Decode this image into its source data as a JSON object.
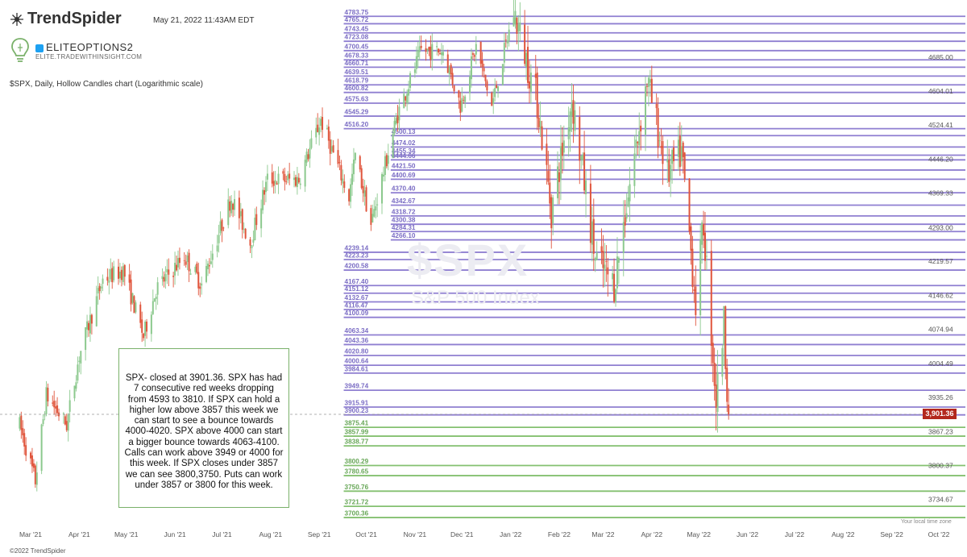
{
  "header": {
    "brand": "TrendSpider",
    "timestamp": "May 21, 2022 11:43AM EDT",
    "account_name": "ELITEOPTIONS2",
    "account_site": "ELITE.TRADEWITHINSIGHT.COM",
    "chart_subtitle": "$SPX, Daily, Hollow Candles chart (Logarithmic scale)"
  },
  "watermark": {
    "symbol": "$SPX",
    "name": "S&P 500 Index"
  },
  "note": "SPX- closed at 3901.36. SPX has had 7 consecutive red weeks dropping from 4593 to 3810. If SPX can hold a higher low above 3857 this week we can start to see a bounce towards 4000-4020. SPX above 4000 can start a bigger bounce towards 4063-4100. Calls can work above 3949 or 4000 for this week. If SPX closes under 3857 we can see 3800,3750. Puts can work under 3857 or 3800 for this week.",
  "last_price": "3,901.36",
  "timezone_note": "Your local time zone",
  "copyright": "©2022 TrendSpider",
  "colors": {
    "resistance": "#8f7fd1",
    "support": "#84c070",
    "up": "#8cc98e",
    "down": "#e0553c",
    "badge": "#b3281d"
  },
  "chart_data": {
    "type": "candlestick",
    "scale": "log",
    "ylim": [
      3670,
      4820
    ],
    "x_ticks": [
      "Mar '21",
      "Apr '21",
      "May '21",
      "Jun '21",
      "Jul '21",
      "Aug '21",
      "Sep '21",
      "Oct '21",
      "Nov '21",
      "Dec '21",
      "Jan '22",
      "Feb '22",
      "Mar '22",
      "Apr '22",
      "May '22",
      "Jun '22",
      "Jul '22",
      "Aug '22",
      "Sep '22",
      "Oct '22"
    ],
    "y_ticks": [
      "4685.00",
      "4604.01",
      "4524.41",
      "4446.20",
      "4369.33",
      "4293.00",
      "4219.57",
      "4146.62",
      "4074.94",
      "4004.49",
      "3935.26",
      "3867.23",
      "3800.37",
      "3734.67"
    ],
    "resistance_levels": [
      {
        "value": 4783.75,
        "label": "4783.75",
        "start": "Oct '21"
      },
      {
        "value": 4765.72,
        "label": "4765.72",
        "start": "Oct '21"
      },
      {
        "value": 4743.45,
        "label": "4743.45",
        "start": "Oct '21"
      },
      {
        "value": 4723.08,
        "label": "4723.08",
        "start": "Oct '21"
      },
      {
        "value": 4700.45,
        "label": "4700.45",
        "start": "Oct '21"
      },
      {
        "value": 4678.33,
        "label": "4678.33",
        "start": "Oct '21"
      },
      {
        "value": 4660.71,
        "label": "4660.71",
        "start": "Oct '21"
      },
      {
        "value": 4639.51,
        "label": "4639.51",
        "start": "Oct '21"
      },
      {
        "value": 4618.79,
        "label": "4618.79",
        "start": "Oct '21"
      },
      {
        "value": 4600.82,
        "label": "4600.82",
        "start": "Oct '21"
      },
      {
        "value": 4575.63,
        "label": "4575.63",
        "start": "Oct '21"
      },
      {
        "value": 4545.29,
        "label": "4545.29",
        "start": "Oct '21"
      },
      {
        "value": 4516.2,
        "label": "4516.20",
        "start": "Oct '21"
      },
      {
        "value": 4500.13,
        "label": "4500.13",
        "start": "Nov '21"
      },
      {
        "value": 4474.02,
        "label": "4474.02",
        "start": "Nov '21"
      },
      {
        "value": 4455.34,
        "label": "4455.34",
        "start": "Nov '21"
      },
      {
        "value": 4444.66,
        "label": "4444.66",
        "start": "Nov '21"
      },
      {
        "value": 4421.5,
        "label": "4421.50",
        "start": "Nov '21"
      },
      {
        "value": 4400.69,
        "label": "4400.69",
        "start": "Nov '21"
      },
      {
        "value": 4370.4,
        "label": "4370.40",
        "start": "Nov '21"
      },
      {
        "value": 4342.67,
        "label": "4342.67",
        "start": "Nov '21"
      },
      {
        "value": 4318.72,
        "label": "4318.72",
        "start": "Nov '21"
      },
      {
        "value": 4300.38,
        "label": "4300.38",
        "start": "Nov '21"
      },
      {
        "value": 4284.31,
        "label": "4284.31",
        "start": "Nov '21"
      },
      {
        "value": 4266.1,
        "label": "4266.10",
        "start": "Nov '21"
      },
      {
        "value": 4239.14,
        "label": "4239.14",
        "start": "Oct '21"
      },
      {
        "value": 4223.23,
        "label": "4223.23",
        "start": "Oct '21"
      },
      {
        "value": 4200.58,
        "label": "4200.58",
        "start": "Oct '21"
      },
      {
        "value": 4167.4,
        "label": "4167.40",
        "start": "Oct '21"
      },
      {
        "value": 4151.12,
        "label": "4151.12",
        "start": "Oct '21"
      },
      {
        "value": 4132.67,
        "label": "4132.67",
        "start": "Oct '21"
      },
      {
        "value": 4116.47,
        "label": "4116.47",
        "start": "Oct '21"
      },
      {
        "value": 4100.09,
        "label": "4100.09",
        "start": "Oct '21"
      },
      {
        "value": 4063.34,
        "label": "4063.34",
        "start": "Oct '21"
      },
      {
        "value": 4043.36,
        "label": "4043.36",
        "start": "Oct '21"
      },
      {
        "value": 4020.8,
        "label": "4020.80",
        "start": "Oct '21"
      },
      {
        "value": 4000.64,
        "label": "4000.64",
        "start": "Oct '21"
      },
      {
        "value": 3984.61,
        "label": "3984.61",
        "start": "Oct '21"
      },
      {
        "value": 3949.74,
        "label": "3949.74",
        "start": "Oct '21"
      },
      {
        "value": 3915.91,
        "label": "3915.91",
        "start": "Oct '21"
      },
      {
        "value": 3900.23,
        "label": "3900.23",
        "start": "Oct '21"
      }
    ],
    "support_levels": [
      {
        "value": 3875.41,
        "label": "3875.41",
        "start": "Oct '21"
      },
      {
        "value": 3857.99,
        "label": "3857.99",
        "start": "Oct '21"
      },
      {
        "value": 3838.77,
        "label": "3838.77",
        "start": "Oct '21"
      },
      {
        "value": 3800.29,
        "label": "3800.29",
        "start": "Oct '21"
      },
      {
        "value": 3780.65,
        "label": "3780.65",
        "start": "Oct '21"
      },
      {
        "value": 3750.76,
        "label": "3750.76",
        "start": "Oct '21"
      },
      {
        "value": 3721.72,
        "label": "3721.72",
        "start": "Oct '21"
      },
      {
        "value": 3700.36,
        "label": "3700.36",
        "start": "Oct '21"
      }
    ],
    "price_path": [
      [
        "2021-02-22",
        3880
      ],
      [
        "2021-03-04",
        3770
      ],
      [
        "2021-03-11",
        3940
      ],
      [
        "2021-03-24",
        3880
      ],
      [
        "2021-04-01",
        4020
      ],
      [
        "2021-04-16",
        4180
      ],
      [
        "2021-04-29",
        4200
      ],
      [
        "2021-05-12",
        4060
      ],
      [
        "2021-05-20",
        4160
      ],
      [
        "2021-06-07",
        4230
      ],
      [
        "2021-06-18",
        4170
      ],
      [
        "2021-07-07",
        4360
      ],
      [
        "2021-07-19",
        4260
      ],
      [
        "2021-07-30",
        4400
      ],
      [
        "2021-08-19",
        4400
      ],
      [
        "2021-09-02",
        4537
      ],
      [
        "2021-09-20",
        4360
      ],
      [
        "2021-09-24",
        4455
      ],
      [
        "2021-10-04",
        4300
      ],
      [
        "2021-10-21",
        4550
      ],
      [
        "2021-11-05",
        4700
      ],
      [
        "2021-11-19",
        4700
      ],
      [
        "2021-11-30",
        4570
      ],
      [
        "2021-12-10",
        4710
      ],
      [
        "2021-12-20",
        4568
      ],
      [
        "2022-01-03",
        4796
      ],
      [
        "2022-01-18",
        4580
      ],
      [
        "2022-01-27",
        4330
      ],
      [
        "2022-02-09",
        4587
      ],
      [
        "2022-02-24",
        4225
      ],
      [
        "2022-03-08",
        4170
      ],
      [
        "2022-03-29",
        4630
      ],
      [
        "2022-04-11",
        4410
      ],
      [
        "2022-04-20",
        4460
      ],
      [
        "2022-04-29",
        4130
      ],
      [
        "2022-05-04",
        4300
      ],
      [
        "2022-05-12",
        3930
      ],
      [
        "2022-05-17",
        4090
      ],
      [
        "2022-05-20",
        3901.36
      ]
    ]
  }
}
